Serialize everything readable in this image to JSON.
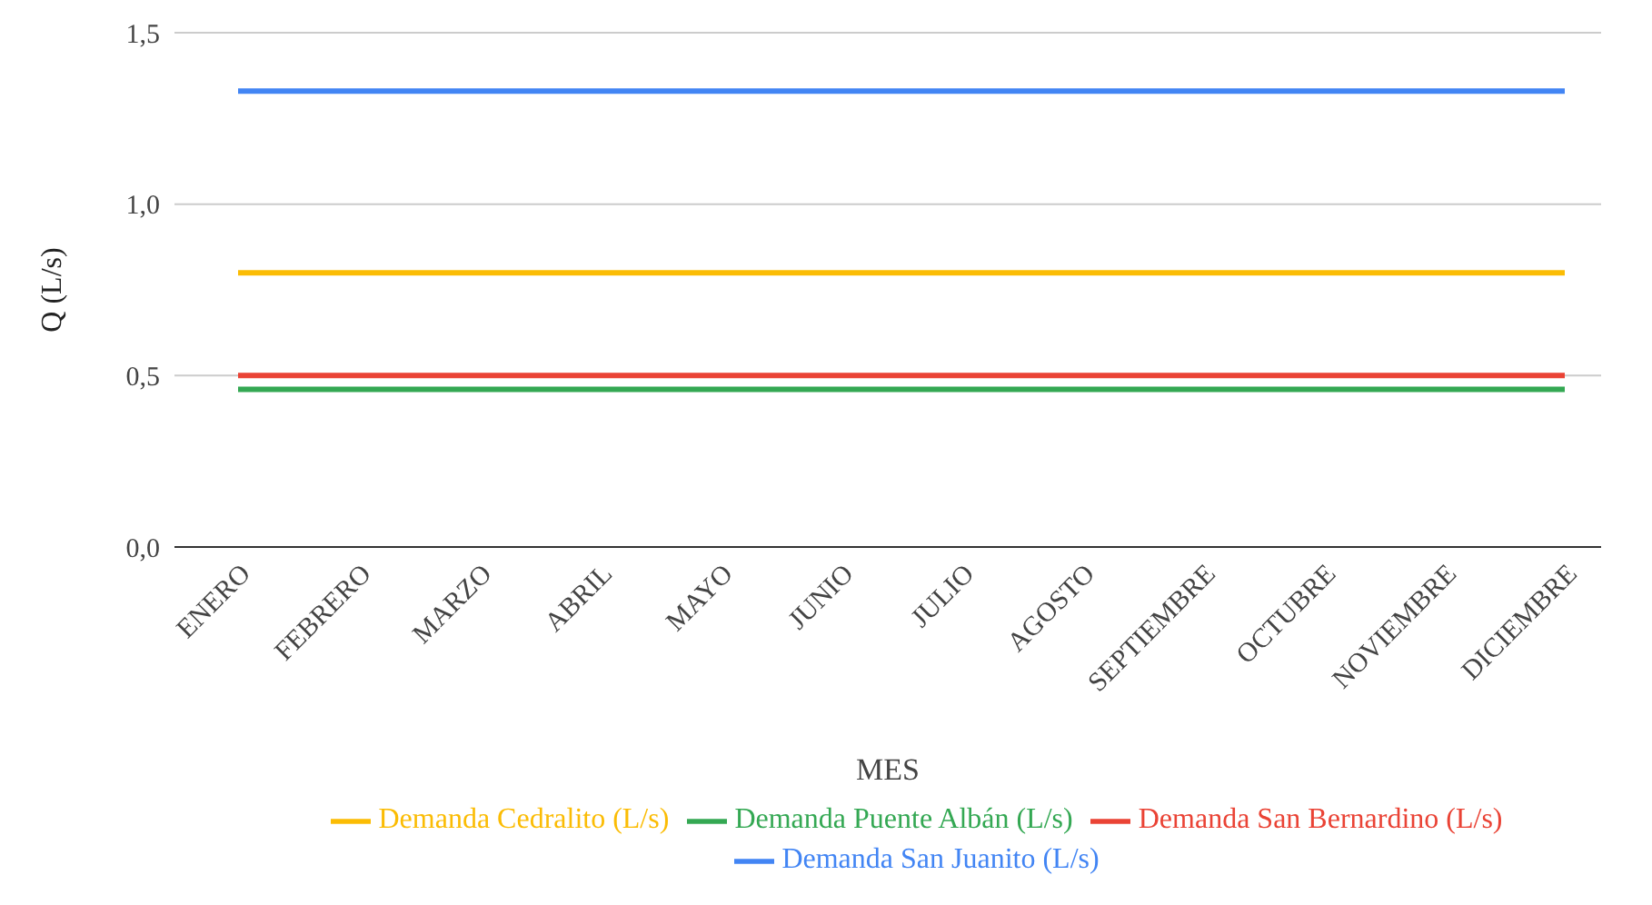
{
  "chart_data": {
    "type": "line",
    "xlabel": "MES",
    "ylabel": "Q (L/s)",
    "categories": [
      "ENERO",
      "FEBRERO",
      "MARZO",
      "ABRIL",
      "MAYO",
      "JUNIO",
      "JULIO",
      "AGOSTO",
      "SEPTIEMBRE",
      "OCTUBRE",
      "NOVIEMBRE",
      "DICIEMBRE"
    ],
    "series": [
      {
        "name": "Demanda San Juanito (L/s)",
        "color": "#4285f4",
        "values": [
          1.33,
          1.33,
          1.33,
          1.33,
          1.33,
          1.33,
          1.33,
          1.33,
          1.33,
          1.33,
          1.33,
          1.33
        ]
      },
      {
        "name": "Demanda San Bernardino (L/s)",
        "color": "#ea4335",
        "values": [
          0.5,
          0.5,
          0.5,
          0.5,
          0.5,
          0.5,
          0.5,
          0.5,
          0.5,
          0.5,
          0.5,
          0.5
        ]
      },
      {
        "name": "Demanda Cedralito (L/s)",
        "color": "#fbbc04",
        "values": [
          0.8,
          0.8,
          0.8,
          0.8,
          0.8,
          0.8,
          0.8,
          0.8,
          0.8,
          0.8,
          0.8,
          0.8
        ]
      },
      {
        "name": "Demanda Puente Albán (L/s)",
        "color": "#34a853",
        "values": [
          0.46,
          0.46,
          0.46,
          0.46,
          0.46,
          0.46,
          0.46,
          0.46,
          0.46,
          0.46,
          0.46,
          0.46
        ]
      }
    ],
    "ylim": [
      0,
      1.5
    ],
    "yticks": [
      {
        "value": 0,
        "label": "0,0"
      },
      {
        "value": 0.5,
        "label": "0,5"
      },
      {
        "value": 1,
        "label": "1,0"
      },
      {
        "value": 1.5,
        "label": "1,5"
      }
    ],
    "grid": "y",
    "legend": "bottom",
    "marker": "none",
    "line_style": "solid"
  }
}
